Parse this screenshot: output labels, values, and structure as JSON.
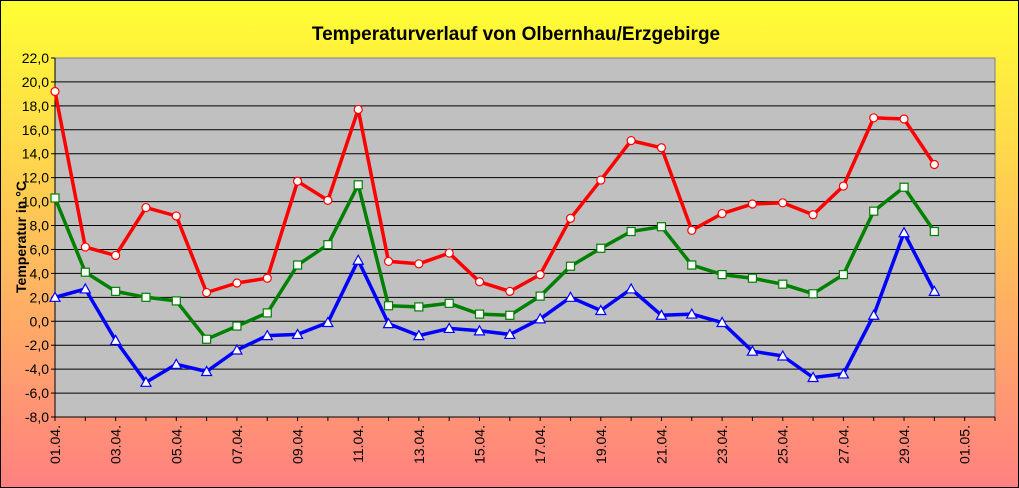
{
  "chart_data": {
    "type": "line",
    "title": "Temperaturverlauf von Olbernhau/Erzgebirge",
    "ylabel": "Temperatur in °C",
    "xlabel": "",
    "ylim": [
      -8,
      22
    ],
    "ytick_step": 2,
    "yticks": [
      "22,0",
      "20,0",
      "18,0",
      "16,0",
      "14,0",
      "12,0",
      "10,0",
      "8,0",
      "6,0",
      "4,0",
      "2,0",
      "0,0",
      "-2,0",
      "-4,0",
      "-6,0",
      "-8,0"
    ],
    "xtick_labels": [
      "01.04.",
      "03.04.",
      "05.04.",
      "07.04.",
      "09.04.",
      "11.04.",
      "13.04.",
      "15.04.",
      "17.04.",
      "19.04.",
      "21.04.",
      "23.04.",
      "25.04.",
      "27.04.",
      "29.04.",
      "01.05."
    ],
    "x_days": 31,
    "grid": true,
    "legend": "none",
    "colors": {
      "background_top": "#FFFF33",
      "background_bottom": "#FF8080",
      "plot_area": "#C0C0C0"
    },
    "series": [
      {
        "color": "#FF0000",
        "marker": "circle",
        "values": [
          19.2,
          6.2,
          5.5,
          9.5,
          8.8,
          2.4,
          3.2,
          3.6,
          11.7,
          10.1,
          17.7,
          5.0,
          4.8,
          5.7,
          3.3,
          2.5,
          3.9,
          8.6,
          11.8,
          15.1,
          14.5,
          7.6,
          9.0,
          9.8,
          9.9,
          8.9,
          11.3,
          17.0,
          16.9,
          13.1
        ]
      },
      {
        "color": "#008000",
        "marker": "square",
        "values": [
          10.3,
          4.1,
          2.5,
          2.0,
          1.7,
          -1.5,
          -0.4,
          0.7,
          4.7,
          6.4,
          11.4,
          1.3,
          1.2,
          1.5,
          0.6,
          0.5,
          2.1,
          4.6,
          6.1,
          7.5,
          7.9,
          4.7,
          3.9,
          3.6,
          3.1,
          2.3,
          3.9,
          9.2,
          11.2,
          7.5
        ]
      },
      {
        "color": "#0000FF",
        "marker": "triangle",
        "values": [
          2.0,
          2.7,
          -1.6,
          -5.1,
          -3.6,
          -4.2,
          -2.4,
          -1.2,
          -1.1,
          -0.1,
          5.1,
          -0.2,
          -1.2,
          -0.6,
          -0.8,
          -1.1,
          0.2,
          2.0,
          0.9,
          2.7,
          0.5,
          0.6,
          -0.1,
          -2.5,
          -2.9,
          -4.7,
          -4.4,
          0.5,
          7.4,
          2.5
        ]
      }
    ]
  }
}
